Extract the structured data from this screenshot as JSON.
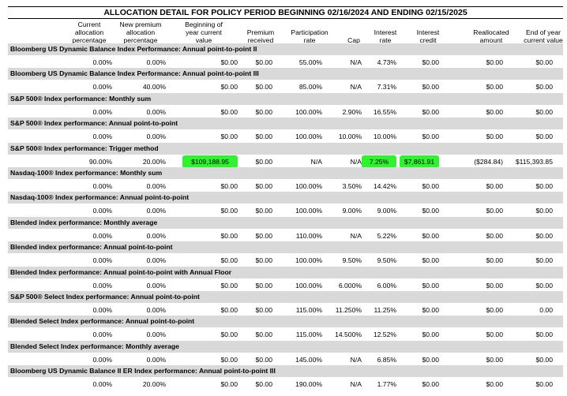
{
  "title": "ALLOCATION DETAIL FOR POLICY PERIOD BEGINNING 02/16/2024 AND ENDING 02/15/2025",
  "columns": [
    [
      "Current",
      "allocation",
      "percentage"
    ],
    [
      "New premium",
      "allocation",
      "percentage"
    ],
    [
      "Beginning of",
      "year current",
      "value"
    ],
    [
      "Premium",
      "received"
    ],
    [
      "Participation",
      "rate"
    ],
    [
      "Cap"
    ],
    [
      "Interest",
      "rate"
    ],
    [
      "Interest",
      "credit"
    ],
    [
      "Reallocated",
      "amount"
    ],
    [
      "End of year",
      "current value"
    ]
  ],
  "strategies": [
    {
      "name": "Bloomberg US Dynamic Balance Index Performance:  Annual point-to-point II",
      "values": [
        "0.00%",
        "0.00%",
        "$0.00",
        "$0.00",
        "55.00%",
        "N/A",
        "4.73%",
        "$0.00",
        "$0.00",
        "$0.00"
      ]
    },
    {
      "name": "Bloomberg US Dynamic Balance Index Performance:  Annual point-to-point III",
      "values": [
        "0.00%",
        "40.00%",
        "$0.00",
        "$0.00",
        "85.00%",
        "N/A",
        "7.31%",
        "$0.00",
        "$0.00",
        "$0.00"
      ]
    },
    {
      "name": "S&P 500® Index performance:  Monthly sum",
      "values": [
        "0.00%",
        "0.00%",
        "$0.00",
        "$0.00",
        "100.00%",
        "2.90%",
        "16.55%",
        "$0.00",
        "$0.00",
        "$0.00"
      ]
    },
    {
      "name": "S&P 500® Index performance:  Annual point-to-point",
      "values": [
        "0.00%",
        "0.00%",
        "$0.00",
        "$0.00",
        "100.00%",
        "10.00%",
        "10.00%",
        "$0.00",
        "$0.00",
        "$0.00"
      ]
    },
    {
      "name": "S&P 500® Index performance:  Trigger method",
      "values": [
        "90.00%",
        "20.00%",
        "$109,188.95",
        "$0.00",
        "N/A",
        "N/A",
        "7.25%",
        "$7,861.91",
        "($284.84)",
        "$115,393.85"
      ]
    },
    {
      "name": "Nasdaq-100® Index performance:  Monthly sum",
      "values": [
        "0.00%",
        "0.00%",
        "$0.00",
        "$0.00",
        "100.00%",
        "3.50%",
        "14.42%",
        "$0.00",
        "$0.00",
        "$0.00"
      ]
    },
    {
      "name": "Nasdaq-100® Index performance:  Annual point-to-point",
      "values": [
        "0.00%",
        "0.00%",
        "$0.00",
        "$0.00",
        "100.00%",
        "9.00%",
        "9.00%",
        "$0.00",
        "$0.00",
        "$0.00"
      ]
    },
    {
      "name": "Blended index performance:  Monthly average",
      "values": [
        "0.00%",
        "0.00%",
        "$0.00",
        "$0.00",
        "110.00%",
        "N/A",
        "5.22%",
        "$0.00",
        "$0.00",
        "$0.00"
      ]
    },
    {
      "name": "Blended index performance:  Annual point-to-point",
      "values": [
        "0.00%",
        "0.00%",
        "$0.00",
        "$0.00",
        "100.00%",
        "9.50%",
        "9.50%",
        "$0.00",
        "$0.00",
        "$0.00"
      ]
    },
    {
      "name": "Blended Index performance:  Annual point-to-point with Annual Floor",
      "values": [
        "0.00%",
        "0.00%",
        "$0.00",
        "$0.00",
        "100.00%",
        "6.000%",
        "6.00%",
        "$0.00",
        "$0.00",
        "$0.00"
      ]
    },
    {
      "name": "S&P 500® Select Index performance:  Annual point-to-point",
      "values": [
        "0.00%",
        "0.00%",
        "$0.00",
        "$0.00",
        "115.00%",
        "11.250%",
        "11.25%",
        "$0.00",
        "$0.00",
        "0.00"
      ]
    },
    {
      "name": "Blended Select Index performance:  Annual point-to-point",
      "values": [
        "0.00%",
        "0.00%",
        "$0.00",
        "$0.00",
        "115.00%",
        "14.500%",
        "12.52%",
        "$0.00",
        "$0.00",
        "$0.00"
      ]
    },
    {
      "name": "Blended Select Index performance:  Monthly average",
      "values": [
        "0.00%",
        "0.00%",
        "$0.00",
        "$0.00",
        "145.00%",
        "N/A",
        "6.85%",
        "$0.00",
        "$0.00",
        "$0.00"
      ]
    },
    {
      "name": "Bloomberg US Dynamic Balance II ER Index performance:  Annual point-to-point III",
      "values": [
        "0.00%",
        "20.00%",
        "$0.00",
        "$0.00",
        "190.00%",
        "N/A",
        "1.77%",
        "$0.00",
        "$0.00",
        "$0.00"
      ]
    }
  ],
  "highlight_color": "#2ef32e"
}
